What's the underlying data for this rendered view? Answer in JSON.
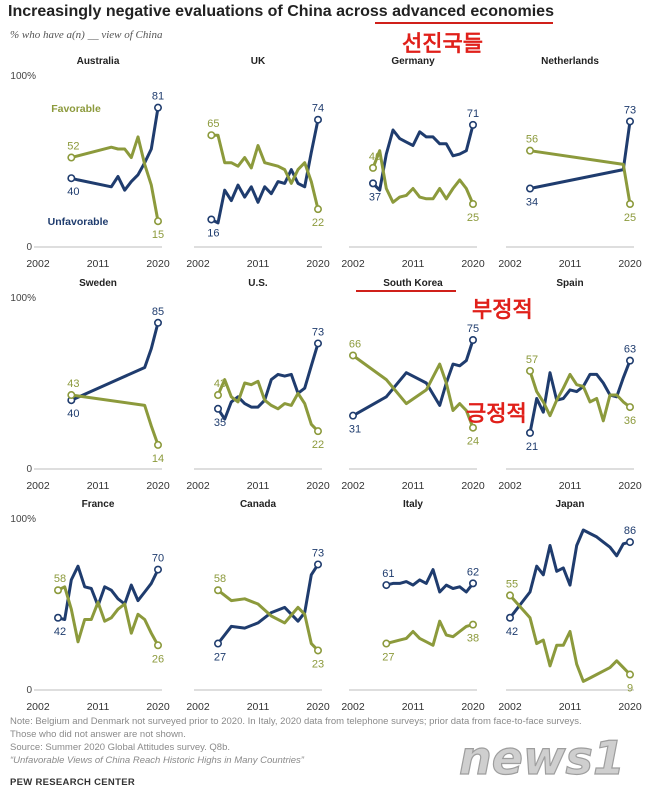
{
  "title": "Increasingly negative evaluations of China across advanced economies",
  "subtitle": "% who have a(n) __ view of China",
  "annotations": {
    "advanced_economies": "선진국들",
    "negative": "부정적",
    "positive": "긍정적"
  },
  "colors": {
    "unfavorable": "#1f3c6e",
    "favorable": "#8c9a3c",
    "highlight": "#d0201a"
  },
  "notes": [
    "Note: Belgium and Denmark not surveyed prior to 2020. In Italy, 2020 data from telephone surveys; prior data from face-to-face surveys.",
    "Those who did not answer are not shown.",
    "Source: Summer 2020 Global Attitudes survey. Q8b.",
    "“Unfavorable Views of China Reach Historic Highs in Many Countries”"
  ],
  "source_org": "PEW RESEARCH CENTER",
  "watermark": "news1",
  "chart_data": [
    {
      "type": "line",
      "country": "Australia",
      "xlim": [
        2002,
        2020
      ],
      "ylim": [
        0,
        100
      ],
      "y_tick": "100%",
      "x_ticks": [
        "2002",
        "2011",
        "2020"
      ],
      "series_labels": [
        "Favorable",
        "Unfavorable"
      ],
      "series": [
        {
          "name": "Unfavorable",
          "x": [
            2007,
            2008,
            2013,
            2014,
            2015,
            2016,
            2017,
            2018,
            2019,
            2020
          ],
          "values": [
            40,
            39,
            35,
            41,
            33,
            38,
            42,
            49,
            57,
            81
          ],
          "label_start": "40",
          "label_end": "81"
        },
        {
          "name": "Favorable",
          "x": [
            2007,
            2008,
            2013,
            2014,
            2015,
            2016,
            2017,
            2018,
            2019,
            2020
          ],
          "values": [
            52,
            53,
            58,
            57,
            57,
            52,
            64,
            48,
            36,
            15
          ],
          "label_start": "52",
          "label_end": "15"
        }
      ]
    },
    {
      "type": "line",
      "country": "UK",
      "xlim": [
        2002,
        2020
      ],
      "ylim": [
        0,
        100
      ],
      "y_tick": "",
      "x_ticks": [
        "2002",
        "2011",
        "2020"
      ],
      "series": [
        {
          "name": "Unfavorable",
          "x": [
            2004,
            2005,
            2006,
            2007,
            2008,
            2009,
            2010,
            2011,
            2012,
            2013,
            2014,
            2015,
            2016,
            2017,
            2018,
            2019,
            2020
          ],
          "values": [
            16,
            14,
            33,
            27,
            36,
            29,
            35,
            26,
            35,
            31,
            38,
            37,
            45,
            37,
            35,
            55,
            74
          ],
          "label_start": "16",
          "label_end": "74"
        },
        {
          "name": "Favorable",
          "x": [
            2004,
            2005,
            2006,
            2007,
            2008,
            2009,
            2010,
            2011,
            2012,
            2013,
            2014,
            2015,
            2016,
            2017,
            2018,
            2019,
            2020
          ],
          "values": [
            65,
            65,
            49,
            49,
            47,
            52,
            46,
            59,
            49,
            48,
            47,
            45,
            37,
            45,
            49,
            38,
            22
          ],
          "label_start": "65",
          "label_end": "22"
        }
      ]
    },
    {
      "type": "line",
      "country": "Germany",
      "xlim": [
        2002,
        2020
      ],
      "ylim": [
        0,
        100
      ],
      "y_tick": "",
      "x_ticks": [
        "2002",
        "2011",
        "2020"
      ],
      "series": [
        {
          "name": "Unfavorable",
          "x": [
            2005,
            2006,
            2007,
            2008,
            2009,
            2010,
            2011,
            2012,
            2013,
            2014,
            2015,
            2016,
            2017,
            2018,
            2019,
            2020
          ],
          "values": [
            37,
            33,
            54,
            68,
            63,
            61,
            59,
            67,
            64,
            64,
            60,
            60,
            53,
            54,
            56,
            71
          ],
          "label_start": "37",
          "label_end": "71"
        },
        {
          "name": "Favorable",
          "x": [
            2005,
            2006,
            2007,
            2008,
            2009,
            2010,
            2011,
            2012,
            2013,
            2014,
            2015,
            2016,
            2017,
            2018,
            2019,
            2020
          ],
          "values": [
            46,
            56,
            34,
            26,
            29,
            30,
            34,
            29,
            28,
            28,
            34,
            28,
            34,
            39,
            34,
            25
          ],
          "label_start": "46",
          "label_end": "25"
        }
      ]
    },
    {
      "type": "line",
      "country": "Netherlands",
      "xlim": [
        2002,
        2020
      ],
      "ylim": [
        0,
        100
      ],
      "y_tick": "",
      "x_ticks": [
        "2002",
        "2011",
        "2020"
      ],
      "series": [
        {
          "name": "Unfavorable",
          "x": [
            2005,
            2019,
            2020
          ],
          "values": [
            34,
            45,
            73
          ],
          "label_start": "34",
          "label_end": "73"
        },
        {
          "name": "Favorable",
          "x": [
            2005,
            2019,
            2020
          ],
          "values": [
            56,
            48,
            25
          ],
          "label_start": "56",
          "label_end": "25"
        }
      ]
    },
    {
      "type": "line",
      "country": "Sweden",
      "xlim": [
        2002,
        2020
      ],
      "ylim": [
        0,
        100
      ],
      "y_tick": "100%",
      "x_ticks": [
        "2002",
        "2011",
        "2020"
      ],
      "series": [
        {
          "name": "Unfavorable",
          "x": [
            2007,
            2018,
            2019,
            2020
          ],
          "values": [
            40,
            59,
            70,
            85
          ],
          "label_start": "40",
          "label_end": "85"
        },
        {
          "name": "Favorable",
          "x": [
            2007,
            2018,
            2019,
            2020
          ],
          "values": [
            43,
            37,
            25,
            14
          ],
          "label_start": "43",
          "label_end": "14"
        }
      ]
    },
    {
      "type": "line",
      "country": "U.S.",
      "xlim": [
        2002,
        2020
      ],
      "ylim": [
        0,
        100
      ],
      "y_tick": "",
      "x_ticks": [
        "2002",
        "2011",
        "2020"
      ],
      "series": [
        {
          "name": "Unfavorable",
          "x": [
            2005,
            2006,
            2007,
            2008,
            2009,
            2010,
            2011,
            2012,
            2013,
            2014,
            2015,
            2016,
            2017,
            2018,
            2019,
            2020
          ],
          "values": [
            35,
            29,
            39,
            42,
            38,
            36,
            36,
            40,
            52,
            55,
            54,
            55,
            44,
            47,
            60,
            73
          ],
          "label_start": "35",
          "label_end": "73"
        },
        {
          "name": "Favorable",
          "x": [
            2005,
            2006,
            2007,
            2008,
            2009,
            2010,
            2011,
            2012,
            2013,
            2014,
            2015,
            2016,
            2017,
            2018,
            2019,
            2020
          ],
          "values": [
            43,
            52,
            42,
            39,
            50,
            49,
            51,
            40,
            37,
            35,
            38,
            37,
            44,
            38,
            26,
            22
          ],
          "label_start": "43",
          "label_end": "22"
        }
      ]
    },
    {
      "type": "line",
      "country": "South Korea",
      "xlim": [
        2002,
        2020
      ],
      "ylim": [
        0,
        100
      ],
      "y_tick": "",
      "x_ticks": [
        "2002",
        "2011",
        "2020"
      ],
      "series": [
        {
          "name": "Unfavorable",
          "x": [
            2002,
            2007,
            2010,
            2013,
            2015,
            2016,
            2017,
            2018,
            2019,
            2020
          ],
          "values": [
            31,
            42,
            56,
            50,
            37,
            50,
            61,
            60,
            63,
            75
          ],
          "label_start": "31",
          "label_end": "75"
        },
        {
          "name": "Favorable",
          "x": [
            2002,
            2007,
            2010,
            2013,
            2015,
            2016,
            2017,
            2018,
            2019,
            2020
          ],
          "values": [
            66,
            52,
            38,
            46,
            61,
            50,
            34,
            38,
            34,
            24
          ],
          "label_start": "66",
          "label_end": "24"
        }
      ]
    },
    {
      "type": "line",
      "country": "Spain",
      "xlim": [
        2002,
        2020
      ],
      "ylim": [
        0,
        100
      ],
      "y_tick": "",
      "x_ticks": [
        "2002",
        "2011",
        "2020"
      ],
      "series": [
        {
          "name": "Unfavorable",
          "x": [
            2005,
            2006,
            2007,
            2008,
            2009,
            2010,
            2011,
            2012,
            2013,
            2014,
            2015,
            2016,
            2017,
            2018,
            2019,
            2020
          ],
          "values": [
            21,
            41,
            33,
            56,
            40,
            41,
            46,
            45,
            48,
            55,
            55,
            50,
            43,
            42,
            53,
            63
          ],
          "label_start": "21",
          "label_end": "63"
        },
        {
          "name": "Favorable",
          "x": [
            2005,
            2006,
            2007,
            2008,
            2009,
            2010,
            2011,
            2012,
            2013,
            2014,
            2015,
            2016,
            2017,
            2018,
            2019,
            2020
          ],
          "values": [
            57,
            45,
            39,
            31,
            40,
            47,
            55,
            49,
            48,
            39,
            41,
            28,
            43,
            43,
            39,
            36
          ],
          "label_start": "57",
          "label_end": "36"
        }
      ]
    },
    {
      "type": "line",
      "country": "France",
      "xlim": [
        2002,
        2020
      ],
      "ylim": [
        0,
        100
      ],
      "y_tick": "100%",
      "x_ticks": [
        "2002",
        "2011",
        "2020"
      ],
      "series": [
        {
          "name": "Unfavorable",
          "x": [
            2005,
            2006,
            2007,
            2008,
            2009,
            2010,
            2011,
            2012,
            2013,
            2014,
            2015,
            2016,
            2017,
            2018,
            2019,
            2020
          ],
          "values": [
            42,
            41,
            64,
            72,
            60,
            59,
            49,
            60,
            58,
            53,
            50,
            61,
            52,
            57,
            62,
            70
          ],
          "label_start": "42",
          "label_end": "70"
        },
        {
          "name": "Favorable",
          "x": [
            2005,
            2006,
            2007,
            2008,
            2009,
            2010,
            2011,
            2012,
            2013,
            2014,
            2015,
            2016,
            2017,
            2018,
            2019,
            2020
          ],
          "values": [
            58,
            60,
            47,
            28,
            41,
            41,
            51,
            40,
            42,
            47,
            50,
            33,
            44,
            41,
            33,
            26
          ],
          "label_start": "58",
          "label_end": "26"
        }
      ]
    },
    {
      "type": "line",
      "country": "Canada",
      "xlim": [
        2002,
        2020
      ],
      "ylim": [
        0,
        100
      ],
      "y_tick": "",
      "x_ticks": [
        "2002",
        "2011",
        "2020"
      ],
      "series": [
        {
          "name": "Unfavorable",
          "x": [
            2005,
            2007,
            2009,
            2011,
            2013,
            2015,
            2017,
            2018,
            2019,
            2020
          ],
          "values": [
            27,
            37,
            36,
            39,
            45,
            48,
            40,
            45,
            67,
            73
          ],
          "label_start": "27",
          "label_end": "73"
        },
        {
          "name": "Favorable",
          "x": [
            2005,
            2007,
            2009,
            2011,
            2013,
            2015,
            2017,
            2018,
            2019,
            2020
          ],
          "values": [
            58,
            52,
            53,
            50,
            43,
            39,
            48,
            44,
            27,
            23
          ],
          "label_start": "58",
          "label_end": "23"
        }
      ]
    },
    {
      "type": "line",
      "country": "Italy",
      "xlim": [
        2002,
        2020
      ],
      "ylim": [
        0,
        100
      ],
      "y_tick": "",
      "x_ticks": [
        "2002",
        "2011",
        "2020"
      ],
      "series": [
        {
          "name": "Unfavorable",
          "x": [
            2007,
            2008,
            2009,
            2010,
            2011,
            2012,
            2013,
            2014,
            2015,
            2016,
            2017,
            2018,
            2019,
            2020
          ],
          "values": [
            61,
            62,
            62,
            63,
            61,
            64,
            62,
            70,
            57,
            61,
            59,
            60,
            57,
            62
          ],
          "label_start": "61",
          "label_end": "62"
        },
        {
          "name": "Favorable",
          "x": [
            2007,
            2008,
            2009,
            2010,
            2011,
            2012,
            2013,
            2014,
            2015,
            2016,
            2017,
            2018,
            2019,
            2020
          ],
          "values": [
            27,
            28,
            29,
            30,
            34,
            30,
            28,
            26,
            40,
            32,
            31,
            34,
            37,
            38
          ],
          "label_start": "27",
          "label_end": "38"
        }
      ]
    },
    {
      "type": "line",
      "country": "Japan",
      "xlim": [
        2002,
        2020
      ],
      "ylim": [
        0,
        100
      ],
      "y_tick": "",
      "x_ticks": [
        "2002",
        "2011",
        "2020"
      ],
      "series": [
        {
          "name": "Unfavorable",
          "x": [
            2002,
            2005,
            2006,
            2007,
            2008,
            2009,
            2010,
            2011,
            2012,
            2013,
            2014,
            2015,
            2016,
            2017,
            2018,
            2019,
            2020
          ],
          "values": [
            42,
            57,
            72,
            67,
            84,
            69,
            71,
            61,
            84,
            93,
            91,
            89,
            86,
            83,
            78,
            85,
            86
          ],
          "label_start": "42",
          "label_end": "86"
        },
        {
          "name": "Favorable",
          "x": [
            2002,
            2005,
            2006,
            2007,
            2008,
            2009,
            2010,
            2011,
            2012,
            2013,
            2014,
            2015,
            2016,
            2017,
            2018,
            2019,
            2020
          ],
          "values": [
            55,
            42,
            27,
            29,
            14,
            26,
            26,
            34,
            15,
            5,
            7,
            9,
            11,
            13,
            17,
            13,
            9
          ],
          "label_start": "55",
          "label_end": "9"
        }
      ]
    }
  ]
}
